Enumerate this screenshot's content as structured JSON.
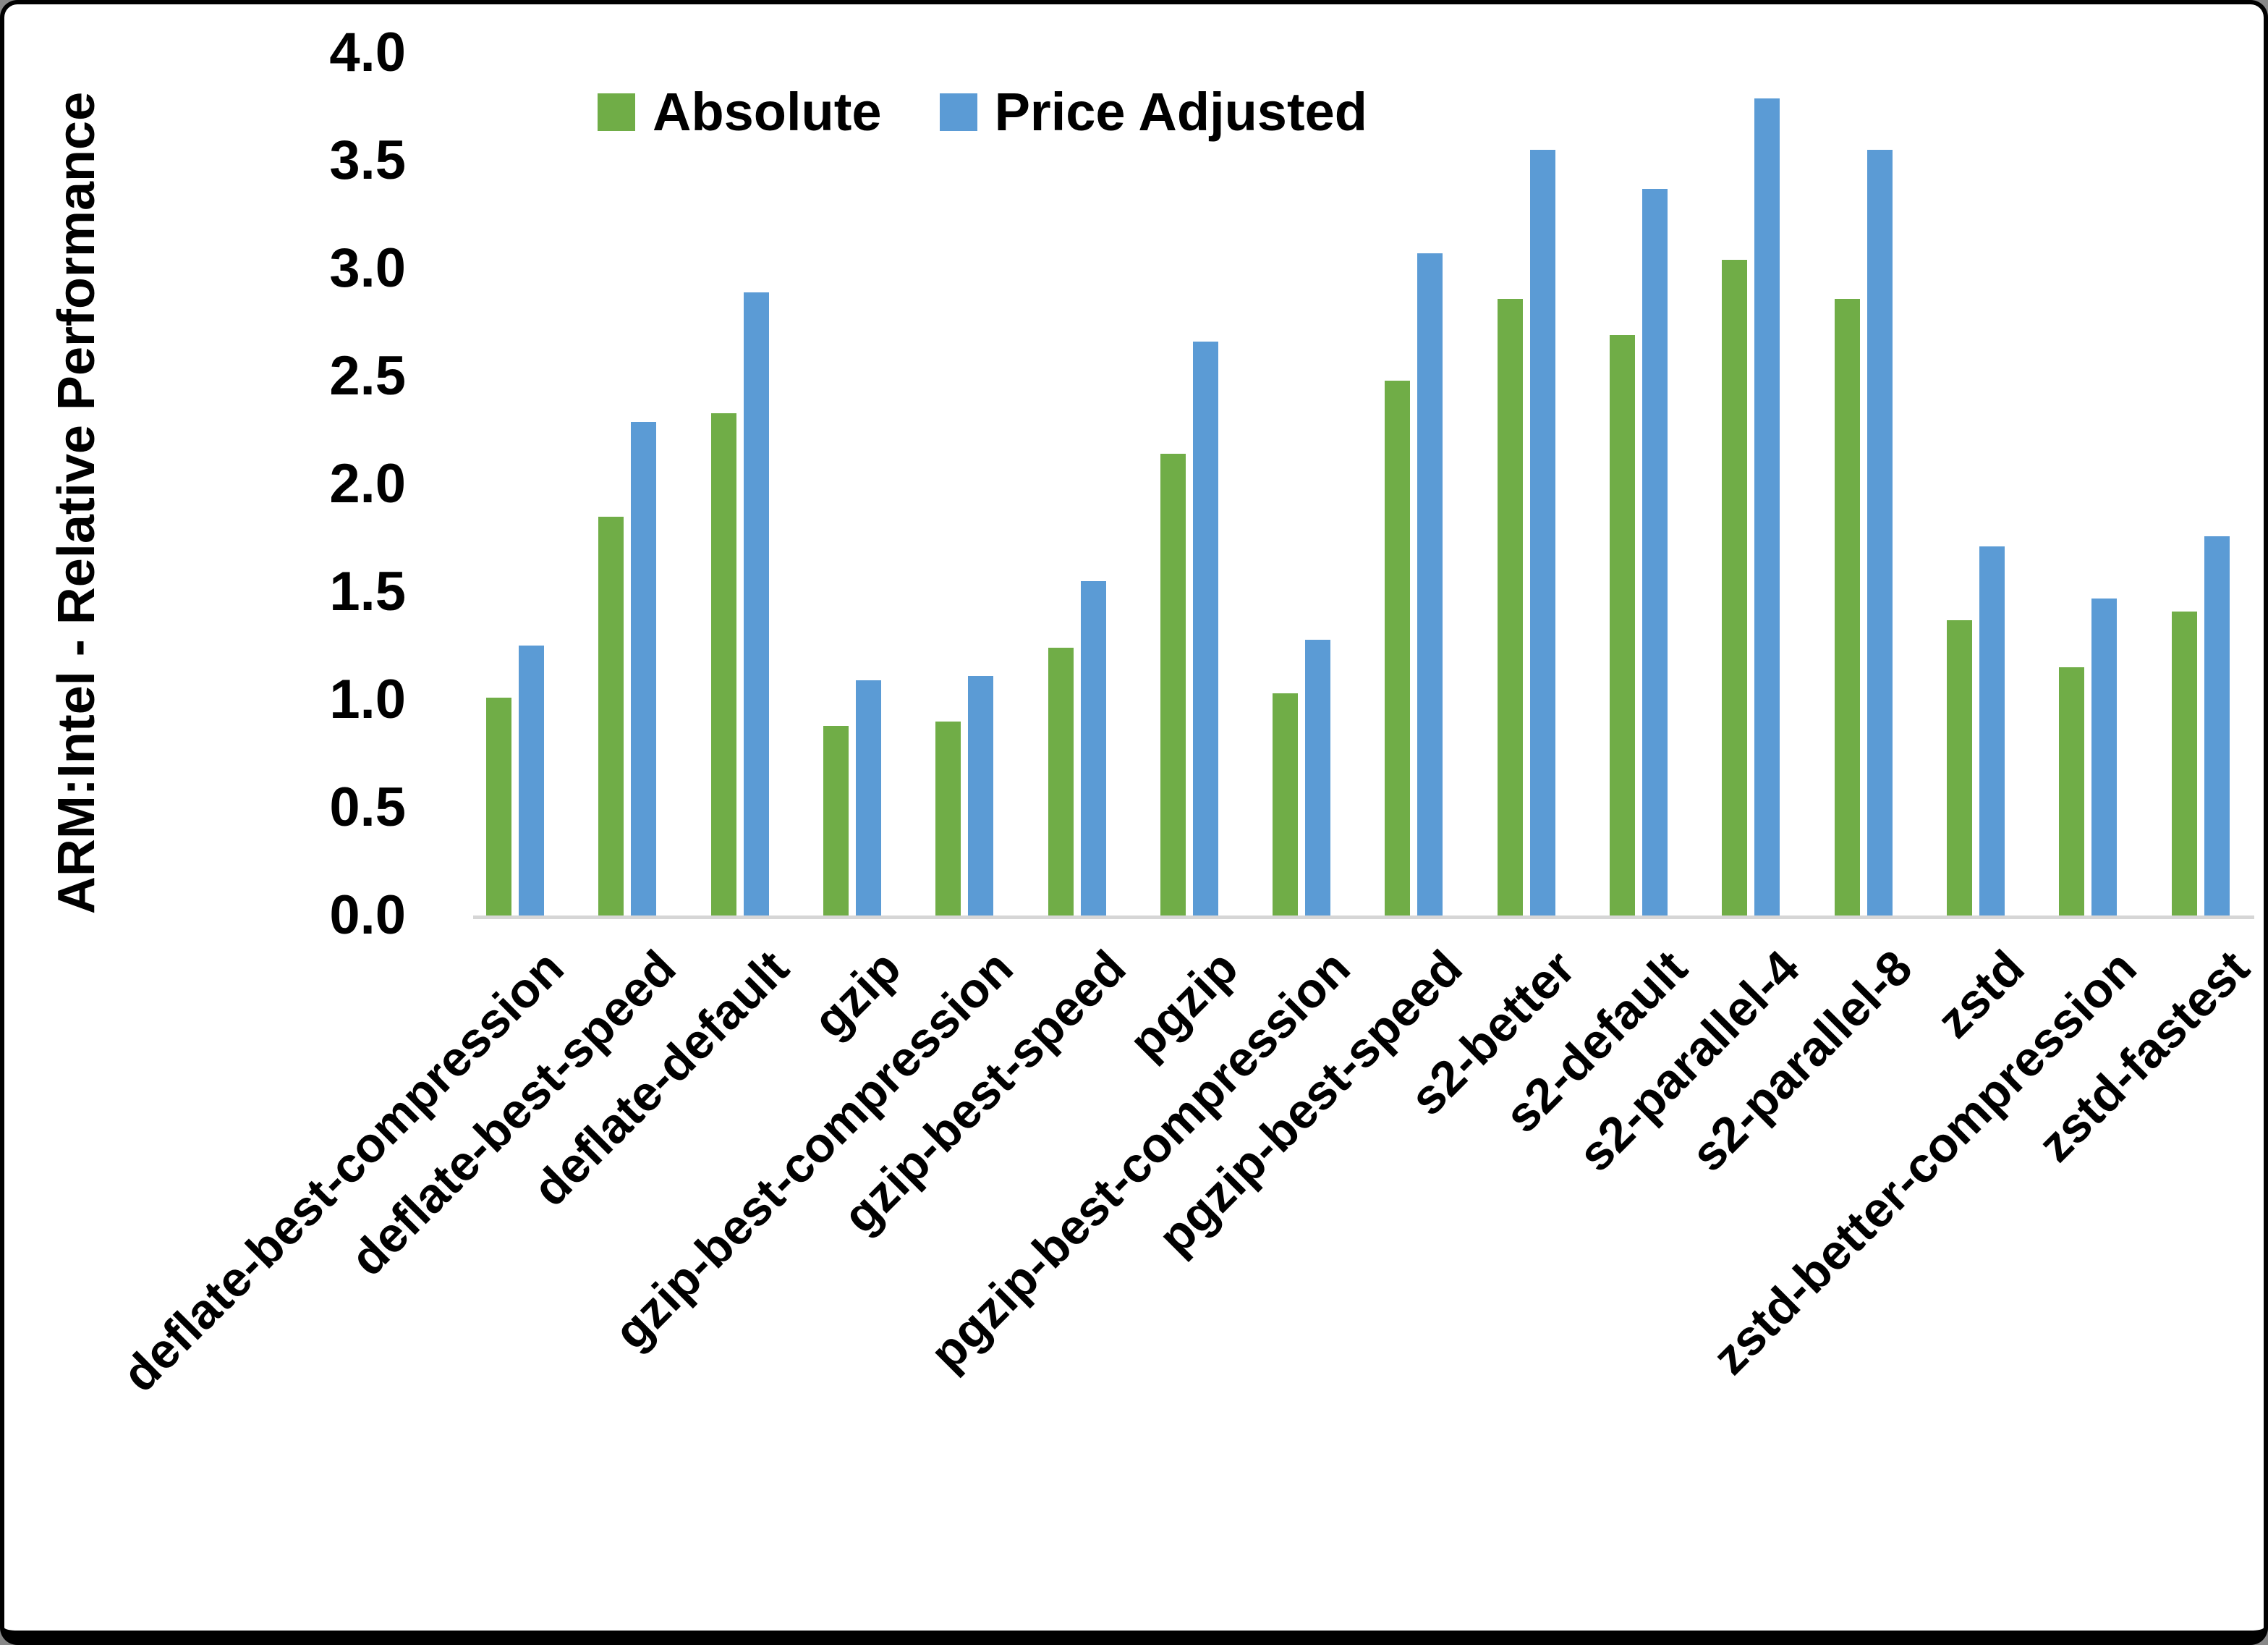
{
  "legend": {
    "absolute_label": "Absolute",
    "price_adjusted_label": "Price Adjusted"
  },
  "y_axis": {
    "title": "ARM:Intel - Relative Performance",
    "tick_labels": [
      "0.0",
      "0.5",
      "1.0",
      "1.5",
      "2.0",
      "2.5",
      "3.0",
      "3.5",
      "4.0"
    ]
  },
  "colors": {
    "absolute": "#70AD47",
    "price_adjusted": "#5B9BD5",
    "axis_line": "#d6d6d6",
    "text": "#000000",
    "background": "#ffffff"
  },
  "chart_data": {
    "type": "bar",
    "title": "",
    "xlabel": "",
    "ylabel": "ARM:Intel - Relative Performance",
    "ylim": [
      0.0,
      4.0
    ],
    "ytick_step": 0.5,
    "grid": false,
    "legend_position": "top-center",
    "categories": [
      "deflate-best-compression",
      "deflate-best-speed",
      "deflate-default",
      "gzip",
      "gzip-best-compression",
      "gzip-best-speed",
      "pgzip",
      "pgzip-best-compression",
      "pgzip-best-speed",
      "s2-better",
      "s2-default",
      "s2-parallel-4",
      "s2-parallel-8",
      "zstd",
      "zstd-better-compression",
      "zstd-fastest"
    ],
    "series": [
      {
        "name": "Absolute",
        "color": "#70AD47",
        "values": [
          1.01,
          1.85,
          2.33,
          0.88,
          0.9,
          1.24,
          2.14,
          1.03,
          2.48,
          2.86,
          2.69,
          3.04,
          2.86,
          1.37,
          1.15,
          1.41
        ]
      },
      {
        "name": "Price Adjusted",
        "color": "#5B9BD5",
        "values": [
          1.25,
          2.29,
          2.89,
          1.09,
          1.11,
          1.55,
          2.66,
          1.28,
          3.07,
          3.55,
          3.37,
          3.79,
          3.55,
          1.71,
          1.47,
          1.76
        ]
      }
    ]
  }
}
